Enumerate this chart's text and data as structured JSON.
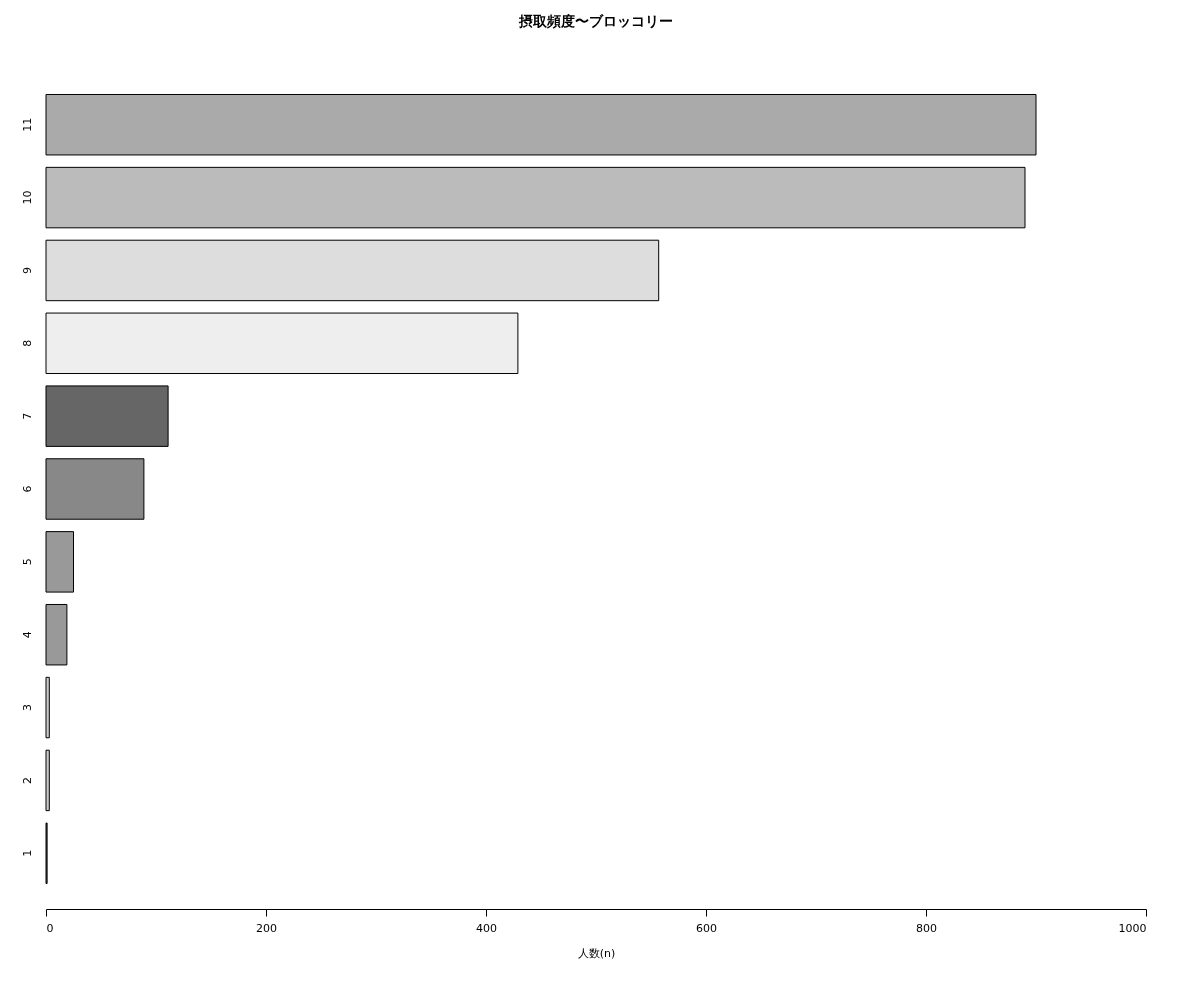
{
  "chart_data": {
    "type": "bar",
    "orientation": "horizontal",
    "title": "摂取頻度〜ブロッコリー",
    "xlabel": "人数(n)",
    "categories": [
      "11",
      "10",
      "9",
      "8",
      "7",
      "6",
      "5",
      "4",
      "3",
      "2",
      "1"
    ],
    "values": [
      900,
      890,
      557,
      429,
      111,
      89,
      25,
      19,
      3,
      3,
      1
    ],
    "colors": [
      "#aaaaaa",
      "#bbbbbb",
      "#dddddd",
      "#eeeeee",
      "#666666",
      "#888888",
      "#999999",
      "#999999",
      "#cccccc",
      "#cccccc",
      "#555555"
    ],
    "xlim": [
      0,
      1000
    ],
    "xticks": [
      0,
      200,
      400,
      600,
      800,
      1000
    ],
    "grid": false
  }
}
